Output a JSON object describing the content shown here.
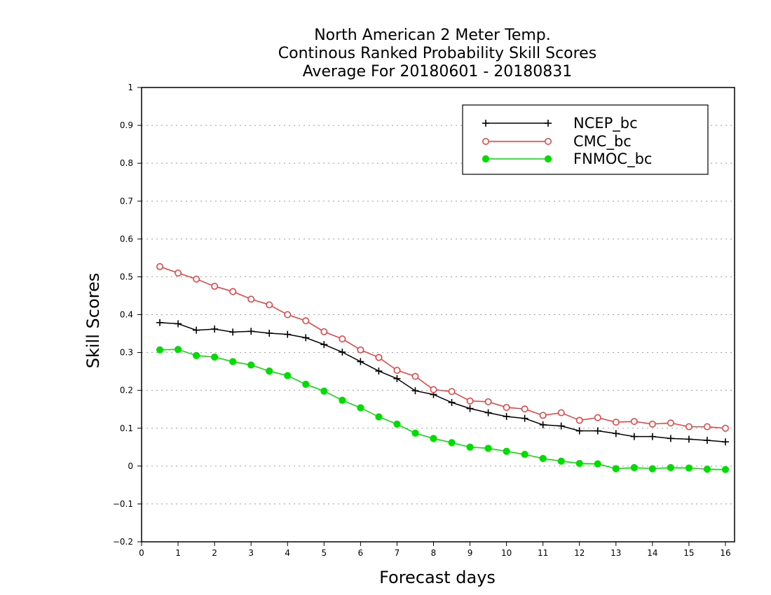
{
  "chart_data": {
    "type": "line",
    "title": [
      "North American 2 Meter Temp.",
      "Continous Ranked Probability Skill Scores",
      "Average For 20180601 - 20180831"
    ],
    "xlabel": "Forecast days",
    "ylabel": "Skill Scores",
    "xlim": [
      0,
      16.25
    ],
    "ylim": [
      -0.2,
      1
    ],
    "xticks": [
      0,
      1,
      2,
      3,
      4,
      5,
      6,
      7,
      8,
      9,
      10,
      11,
      12,
      13,
      14,
      15,
      16
    ],
    "yticks": [
      -0.2,
      -0.1,
      0,
      0.1,
      0.2,
      0.3,
      0.4,
      0.5,
      0.6,
      0.7,
      0.8,
      0.9,
      1
    ],
    "ytick_labels": [
      "−0.2",
      "−0.1",
      "0",
      "0.1",
      "0.2",
      "0.3",
      "0.4",
      "0.5",
      "0.6",
      "0.7",
      "0.8",
      "0.9",
      "1"
    ],
    "grid": "horizontal dotted",
    "legend_position": "top-right",
    "x": [
      0.5,
      1,
      1.5,
      2,
      2.5,
      3,
      3.5,
      4,
      4.5,
      5,
      5.5,
      6,
      6.5,
      7,
      7.5,
      8,
      8.5,
      9,
      9.5,
      10,
      10.5,
      11,
      11.5,
      12,
      12.5,
      13,
      13.5,
      14,
      14.5,
      15,
      15.5,
      16
    ],
    "series": [
      {
        "name": "NCEP_bc",
        "color": "#000000",
        "marker": "plus",
        "values": [
          0.379,
          0.376,
          0.359,
          0.362,
          0.354,
          0.356,
          0.351,
          0.348,
          0.339,
          0.321,
          0.301,
          0.276,
          0.251,
          0.231,
          0.199,
          0.189,
          0.168,
          0.152,
          0.141,
          0.131,
          0.126,
          0.109,
          0.106,
          0.093,
          0.093,
          0.086,
          0.078,
          0.078,
          0.073,
          0.071,
          0.068,
          0.064
        ]
      },
      {
        "name": "CMC_bc",
        "color": "#ee3b3b",
        "marker": "open-circle",
        "values": [
          0.527,
          0.51,
          0.494,
          0.475,
          0.461,
          0.441,
          0.426,
          0.4,
          0.384,
          0.355,
          0.336,
          0.307,
          0.287,
          0.253,
          0.237,
          0.202,
          0.197,
          0.172,
          0.17,
          0.155,
          0.151,
          0.134,
          0.141,
          0.121,
          0.128,
          0.116,
          0.118,
          0.111,
          0.114,
          0.104,
          0.104,
          0.1
        ]
      },
      {
        "name": "FNMOC_bc",
        "color": "#00dd00",
        "marker": "filled-circle",
        "values": [
          0.307,
          0.308,
          0.292,
          0.288,
          0.276,
          0.267,
          0.251,
          0.239,
          0.216,
          0.198,
          0.174,
          0.154,
          0.13,
          0.111,
          0.087,
          0.073,
          0.062,
          0.05,
          0.047,
          0.039,
          0.031,
          0.02,
          0.013,
          0.007,
          0.006,
          -0.007,
          -0.004,
          -0.007,
          -0.004,
          -0.005,
          -0.008,
          -0.009
        ]
      }
    ]
  }
}
